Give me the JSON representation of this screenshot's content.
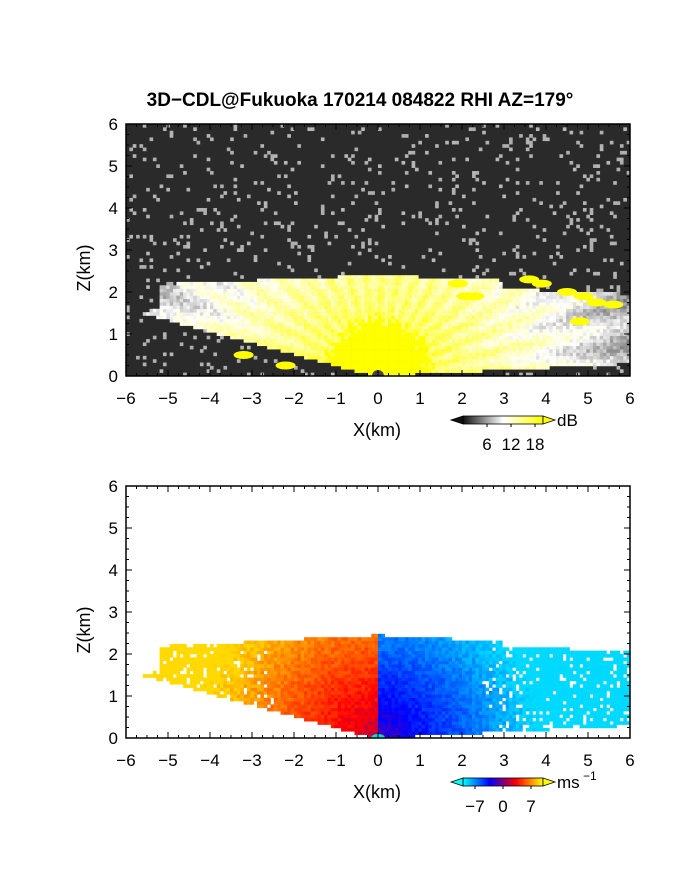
{
  "figure": {
    "title": "3D−CDL@Fukuoka 170214 084822 RHI AZ=179°"
  },
  "chart_data": [
    {
      "type": "heatmap",
      "panel": "reflectivity",
      "title": "3D−CDL@Fukuoka 170214 084822 RHI AZ=179°",
      "xlabel": "X(km)",
      "ylabel": "Z(km)",
      "xlim": [
        -6,
        6
      ],
      "ylim": [
        0,
        6
      ],
      "xticks": [
        -6,
        -5,
        -4,
        -3,
        -2,
        -1,
        0,
        1,
        2,
        3,
        4,
        5,
        6
      ],
      "yticks": [
        0,
        1,
        2,
        3,
        4,
        5,
        6
      ],
      "colorbar": {
        "unit": "dB",
        "ticks": [
          6,
          12,
          18
        ],
        "range": [
          0,
          20
        ],
        "colors": [
          "#111111",
          "#ffffff",
          "#ffff00"
        ]
      },
      "features": {
        "noise_background_db": [
          0,
          5
        ],
        "echo_top_km": 2.4,
        "saturated_core_center_km": [
          0,
          0.4
        ],
        "saturated_core_radius_km": 1.2,
        "yellow_patches": [
          {
            "x": 1.9,
            "z": 2.2
          },
          {
            "x": 2.1,
            "z": 1.9
          },
          {
            "x": 2.3,
            "z": 1.9
          },
          {
            "x": 3.6,
            "z": 2.3
          },
          {
            "x": 3.9,
            "z": 2.2
          },
          {
            "x": 4.5,
            "z": 2.0
          },
          {
            "x": 4.9,
            "z": 1.9
          },
          {
            "x": 5.2,
            "z": 1.75
          },
          {
            "x": 5.6,
            "z": 1.7
          },
          {
            "x": 4.8,
            "z": 1.3
          },
          {
            "x": -3.2,
            "z": 0.5
          },
          {
            "x": -2.2,
            "z": 0.25
          }
        ]
      }
    },
    {
      "type": "heatmap",
      "panel": "doppler_velocity",
      "xlabel": "X(km)",
      "ylabel": "Z(km)",
      "xlim": [
        -6,
        6
      ],
      "ylim": [
        0,
        6
      ],
      "xticks": [
        -6,
        -5,
        -4,
        -3,
        -2,
        -1,
        0,
        1,
        2,
        3,
        4,
        5,
        6
      ],
      "yticks": [
        0,
        1,
        2,
        3,
        4,
        5,
        6
      ],
      "colorbar": {
        "unit_base": "ms",
        "unit_exp": "−1",
        "ticks": [
          "−7",
          "0",
          "7"
        ],
        "range": [
          -10,
          10
        ],
        "colors": [
          "#00ffff",
          "#0000ff",
          "#ff0000",
          "#ffff00"
        ]
      },
      "features": {
        "echo_top_km": 2.45,
        "negative_side": "x > 0",
        "positive_side": "x < 0",
        "max_abs_velocity": 9
      }
    }
  ],
  "panels": [
    {
      "ticks_x": [
        "−6",
        "−5",
        "−4",
        "−3",
        "−2",
        "−1",
        "0",
        "1",
        "2",
        "3",
        "4",
        "5",
        "6"
      ],
      "ticks_y": [
        "0",
        "1",
        "2",
        "3",
        "4",
        "5",
        "6"
      ],
      "xlabel": "X(km)",
      "ylabel": "Z(km)",
      "colorbar_unit": "dB",
      "colorbar_ticks": [
        "6",
        "12",
        "18"
      ]
    },
    {
      "ticks_x": [
        "−6",
        "−5",
        "−4",
        "−3",
        "−2",
        "−1",
        "0",
        "1",
        "2",
        "3",
        "4",
        "5",
        "6"
      ],
      "ticks_y": [
        "0",
        "1",
        "2",
        "3",
        "4",
        "5",
        "6"
      ],
      "xlabel": "X(km)",
      "ylabel": "Z(km)",
      "colorbar_unit_base": "ms",
      "colorbar_unit_exp": "−1",
      "colorbar_ticks": [
        "−7",
        "0",
        "7"
      ]
    }
  ]
}
